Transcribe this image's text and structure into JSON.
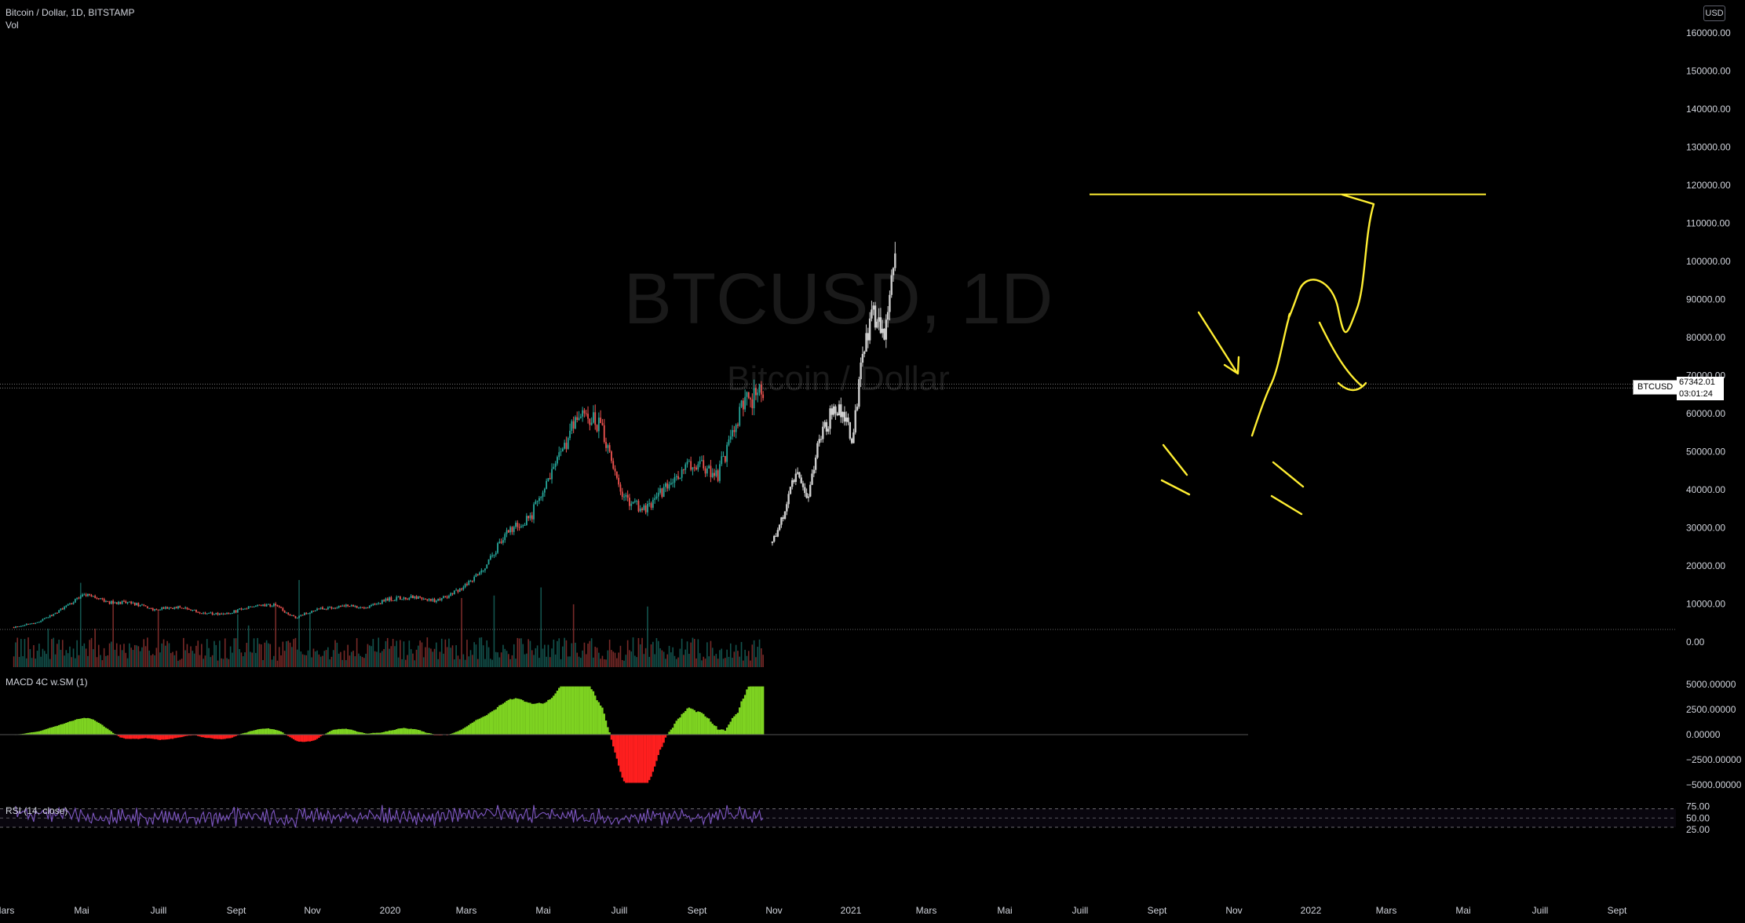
{
  "main_legend": {
    "title": "Bitcoin / Dollar, 1D, BITSTAMP",
    "vol_label": "Vol"
  },
  "currency": "USD",
  "watermark": {
    "symbol": "BTCUSD, 1D",
    "name": "Bitcoin / Dollar"
  },
  "last_price": {
    "symbol": "BTCUSD",
    "value": "67342.01",
    "countdown": "03:01:24"
  },
  "macd_legend": "MACD 4C w.SM (1)",
  "rsi_legend": "RSI (14, close)",
  "colors": {
    "up": "#26a69a",
    "down": "#ef5350",
    "drawing": "#ffee32",
    "projection": "#cfcfcf",
    "macd_up": "#7ed321",
    "macd_down": "#ff1f1f",
    "rsi": "#7e57c2",
    "text": "#d1d4dc"
  },
  "chart_data": [
    {
      "type": "line",
      "title": "Bitcoin / Dollar, 1D, BITSTAMP",
      "y_ticks": [
        "160000.00",
        "150000.00",
        "140000.00",
        "130000.00",
        "120000.00",
        "110000.00",
        "100000.00",
        "90000.00",
        "80000.00",
        "70000.00",
        "60000.00",
        "50000.00",
        "40000.00",
        "30000.00",
        "20000.00",
        "10000.00",
        "0.00"
      ],
      "x_ticks": [
        "Mars",
        "Mai",
        "Juill",
        "Sept",
        "Nov",
        "2020",
        "Mars",
        "Mai",
        "Juill",
        "Sept",
        "Nov",
        "2021",
        "Mars",
        "Mai",
        "Juill",
        "Sept",
        "Nov",
        "2022",
        "Mars",
        "Mai",
        "Juill",
        "Sept"
      ],
      "ylim": [
        0,
        160000
      ],
      "series": [
        {
          "x": [
            "2019-03",
            "2019-04",
            "2019-05",
            "2019-06",
            "2019-07",
            "2019-08",
            "2019-09",
            "2019-10",
            "2019-11",
            "2019-12",
            "2020-01",
            "2020-02",
            "2020-03",
            "2020-04",
            "2020-05",
            "2020-06",
            "2020-07",
            "2020-08",
            "2020-09",
            "2020-10",
            "2020-11",
            "2020-12",
            "2021-01",
            "2021-02",
            "2021-03",
            "2021-04",
            "2021-05",
            "2021-06",
            "2021-07",
            "2021-08",
            "2021-09",
            "2021-10",
            "2021-11"
          ],
          "values": [
            3900,
            5200,
            8500,
            12500,
            10500,
            10200,
            8500,
            9200,
            7600,
            7200,
            9300,
            9800,
            6400,
            8700,
            9500,
            9200,
            11300,
            11700,
            10800,
            13800,
            19400,
            29000,
            33100,
            45100,
            58900,
            57700,
            37300,
            35000,
            41500,
            47100,
            43800,
            61300,
            67342
          ]
        },
        {
          "x": [
            "2021-11-25",
            "2021-12-10",
            "2021-12-25",
            "2022-01-10",
            "2022-01-25",
            "2022-02-10",
            "2022-02-25",
            "2022-03-10",
            "2022-03-20",
            "2022-04-05",
            "2022-04-20",
            "2022-05-05"
          ],
          "values": [
            26000,
            34000,
            45000,
            37000,
            53000,
            60000,
            61000,
            52000,
            75000,
            87000,
            79000,
            109000
          ]
        }
      ]
    },
    {
      "type": "bar",
      "title": "MACD 4C w.SM (1)",
      "y_ticks": [
        "5000.00000",
        "2500.00000",
        "0.00000",
        "−2500.00000",
        "−5000.00000"
      ],
      "ylim": [
        -5000,
        5000
      ]
    },
    {
      "type": "line",
      "title": "RSI (14, close)",
      "y_ticks": [
        "75.00",
        "50.00",
        "25.00"
      ],
      "ylim": [
        25,
        75
      ]
    }
  ]
}
